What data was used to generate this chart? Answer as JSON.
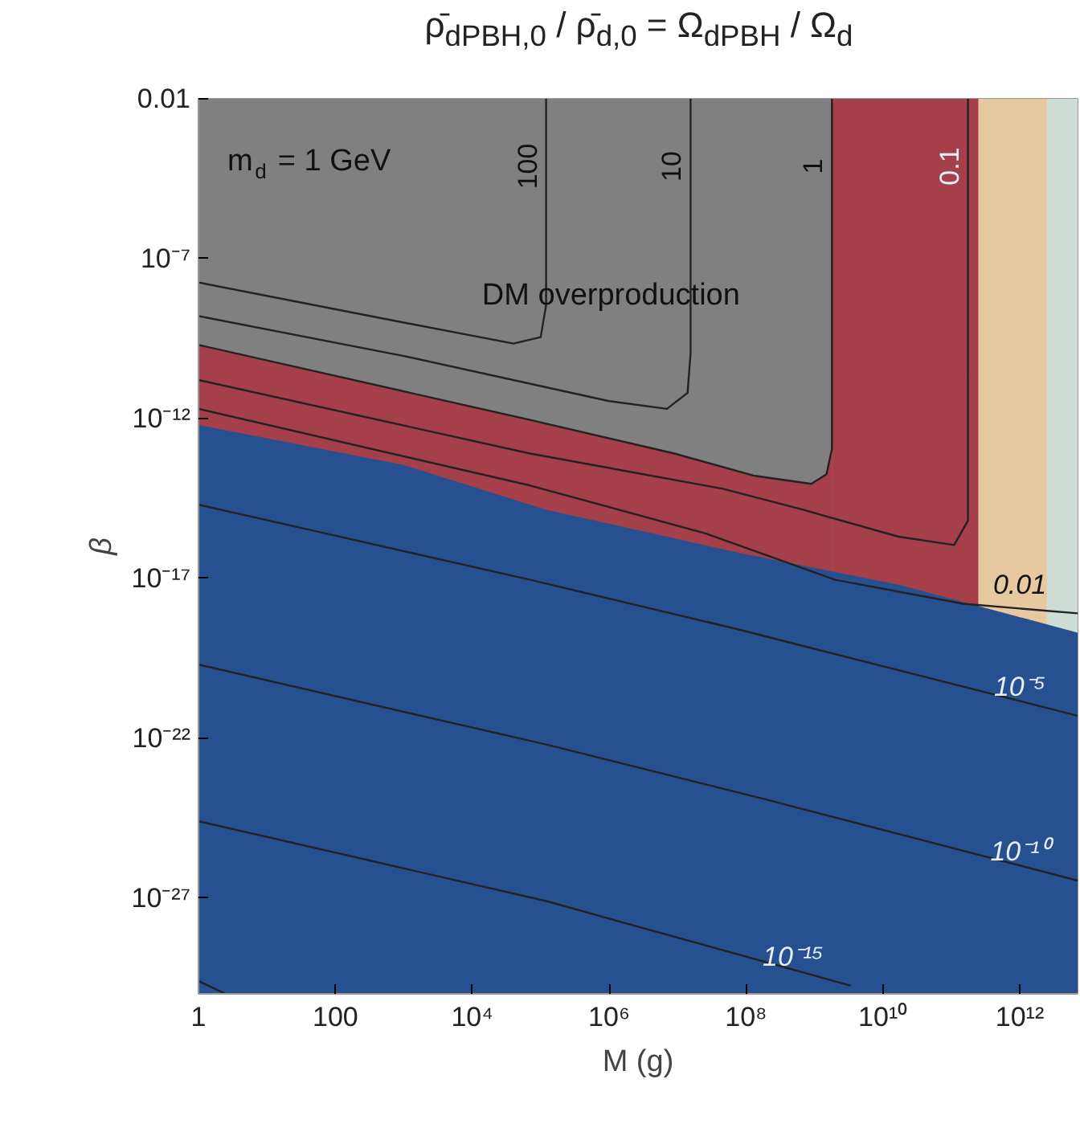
{
  "chart_data": {
    "type": "line",
    "title": "ρ̄$_{dPBH,0}$ / ρ̄$_{d,0}$ = Ω$_{dPBH}$ / Ω$_{d}$",
    "xlabel": "M (g)",
    "ylabel": "β",
    "log": "xy",
    "xlim": [
      1,
      7000000000000.0
    ],
    "ylim": [
      1e-30,
      0.01
    ],
    "xticks": [
      1,
      100,
      {
        "value": 10000,
        "label": "10⁴"
      },
      {
        "value": 1000000.0,
        "label": "10⁶"
      },
      {
        "value": 100000000.0,
        "label": "10⁸"
      },
      {
        "value": 10000000000.0,
        "label": "10¹⁰"
      },
      {
        "value": 1000000000000.0,
        "label": "10¹²"
      }
    ],
    "yticks": [
      0.01,
      {
        "value": 1e-07,
        "label": "10⁻⁷"
      },
      {
        "value": 1e-12,
        "label": "10⁻¹²"
      },
      {
        "value": 1e-17,
        "label": "10⁻¹⁷"
      },
      {
        "value": 1e-22,
        "label": "10⁻²²"
      },
      {
        "value": 1e-27,
        "label": "10⁻²⁷"
      }
    ],
    "series": [
      {
        "type": "area",
        "color": "#a5404b",
        "x": [
          1,
          250000000000.0
        ],
        "values": [
          0.01,
          0.01
        ]
      },
      {
        "type": "area",
        "color": "#e6c9a0",
        "x": [
          250000000000.0,
          2500000000000.0
        ],
        "values": [
          0.01,
          0.01
        ]
      },
      {
        "type": "area",
        "color": "#cddcd4",
        "x": [
          2500000000000.0,
          7000000000000.0
        ],
        "values": [
          0.01,
          0.01
        ]
      },
      {
        "type": "area",
        "color": "#808080",
        "x": [
          1,
          1800000000.0
        ],
        "values": [
          0.01,
          0.01
        ]
      },
      {
        "type": "area",
        "color": "#a5404b",
        "x": [
          1,
          70000.0,
          9000000.0,
          135000000.0,
          900000000.0,
          1500000000.0,
          1800000000.0
        ],
        "values": [
          2e-10,
          9e-13,
          8e-14,
          1.6e-14,
          9e-15,
          1.8e-14,
          1.1e-13
        ]
      },
      {
        "type": "area",
        "color": "#26508f",
        "x": [
          1,
          1000.0,
          120000.0,
          78000000.0,
          17000000000.0,
          7000000000000.0
        ],
        "values": [
          6.3e-13,
          3.5e-14,
          1.4e-15,
          6.3e-17,
          6.3e-18,
          2e-19
        ]
      },
      {
        "type": "line",
        "name": "100",
        "color": "#222222",
        "x": [
          1,
          1000.0,
          40000.0,
          100000.0,
          120000.0,
          120000.0
        ],
        "values": [
          1.8e-08,
          1e-09,
          2.2e-10,
          3.5e-10,
          3.5e-09,
          0.01
        ]
      },
      {
        "type": "line",
        "name": "10",
        "color": "#222222",
        "x": [
          1,
          1000.0,
          1000000.0,
          7000000.0,
          14000000.0,
          15500000.0,
          15500000.0
        ],
        "values": [
          1.6e-09,
          9e-11,
          3.5e-12,
          2e-12,
          6.3e-12,
          1.1e-10,
          0.01
        ]
      },
      {
        "type": "line",
        "name": "1",
        "color": "#222222",
        "x": [
          1,
          70000.0,
          9000000.0,
          135000000.0,
          900000000.0,
          1500000000.0,
          1800000000.0,
          1800000000.0
        ],
        "values": [
          2e-10,
          9e-13,
          8e-14,
          1.6e-14,
          9e-15,
          1.8e-14,
          1.1e-13,
          0.01
        ]
      },
      {
        "type": "line",
        "name": "0.1",
        "color": "#222222",
        "x": [
          1,
          70000.0,
          46000000.0,
          680000000.0,
          17000000000.0,
          110000000000.0,
          175000000000.0,
          175000000000.0
        ],
        "values": [
          1.6e-11,
          8e-14,
          6.3e-15,
          1.4e-15,
          2e-16,
          1.1e-16,
          6.3e-16,
          0.01
        ]
      },
      {
        "type": "line",
        "name": "0.01",
        "color": "#222222",
        "x": [
          1,
          70000.0,
          26000000.0,
          2000000000.0,
          150000000000.0,
          7000000000000.0
        ],
        "values": [
          2e-12,
          8e-15,
          2.5e-16,
          9e-18,
          1.6e-18,
          8e-19
        ]
      },
      {
        "type": "line",
        "name": "10⁻⁵",
        "color": "#222222",
        "x": [
          1,
          37,
          70000.0,
          78000000.0,
          7000000000000.0
        ],
        "values": [
          2e-15,
          3.5e-16,
          9e-18,
          2.5e-19,
          5e-22
        ]
      },
      {
        "type": "line",
        "name": "10⁻¹⁰",
        "color": "#222222",
        "x": [
          1,
          120000.0,
          230000000.0,
          7000000000000.0
        ],
        "values": [
          2e-20,
          6.3e-23,
          1.1e-24,
          3.5e-27
        ]
      },
      {
        "type": "line",
        "name": "10⁻¹⁵",
        "color": "#222222",
        "x": [
          1,
          120000.0,
          3400000000.0
        ],
        "values": [
          2.5e-25,
          8e-28,
          1.8e-30
        ]
      },
      {
        "type": "line",
        "color": "#222222",
        "x": [
          1,
          2.5
        ],
        "values": [
          2.5e-30,
          1e-30
        ]
      }
    ],
    "annotations": [
      "m$_{d}$ = 1 GeV",
      "DM overproduction"
    ]
  }
}
